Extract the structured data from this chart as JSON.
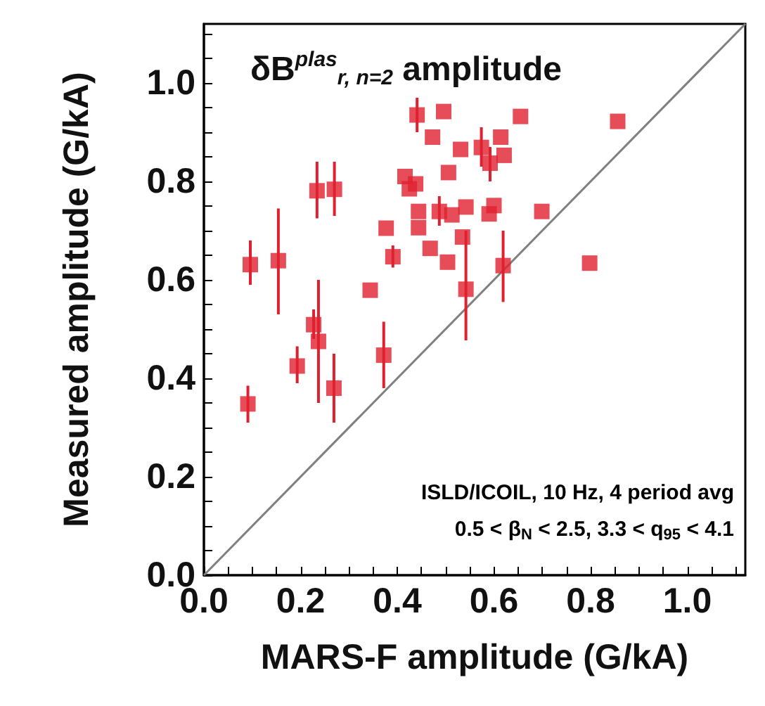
{
  "chart_data": {
    "type": "scatter",
    "title": "δB$^{plas}$$_{r, n=2}$ amplitude",
    "xlabel": "MARS-F amplitude (G/kA)",
    "ylabel": "Measured amplitude (G/kA)",
    "annotations": [
      "ISLD/ICOIL, 10 Hz, 4 period avg",
      "0.5 < β$_{N}$ < 2.5, 3.3 < q$_{95}$ < 4.1"
    ],
    "xlim": [
      0,
      1.12
    ],
    "ylim": [
      0,
      1.12
    ],
    "xticks": [
      {
        "value": 0,
        "label": "0.0"
      },
      {
        "value": 0.05,
        "label": null
      },
      0.2,
      {
        "value": 0.1,
        "label": null
      },
      {
        "value": 0.15,
        "label": null
      },
      {
        "value": 0.25,
        "label": null
      },
      {
        "value": 0.3,
        "label": null
      },
      {
        "value": 0.35,
        "label": null
      },
      0.4,
      {
        "value": 0.45,
        "label": null
      },
      {
        "value": 0.5,
        "label": null
      },
      {
        "value": 0.55,
        "label": null
      },
      0.6,
      {
        "value": 0.65,
        "label": null
      },
      {
        "value": 0.7,
        "label": null
      },
      {
        "value": 0.75,
        "label": null
      },
      0.8,
      {
        "value": 0.85,
        "label": null
      },
      {
        "value": 0.9,
        "label": null
      },
      {
        "value": 0.95,
        "label": null
      },
      {
        "value": 1,
        "label": "1.0"
      },
      {
        "value": 1.05,
        "label": null
      },
      {
        "value": 1.1,
        "label": null
      }
    ],
    "yticks": [
      {
        "value": 0,
        "label": "0.0"
      },
      {
        "value": 0.05,
        "label": null
      },
      {
        "value": 0.1,
        "label": null
      },
      {
        "value": 0.15,
        "label": null
      },
      0.2,
      {
        "value": 0.25,
        "label": null
      },
      {
        "value": 0.3,
        "label": null
      },
      {
        "value": 0.35,
        "label": null
      },
      0.4,
      {
        "value": 0.45,
        "label": null
      },
      {
        "value": 0.5,
        "label": null
      },
      {
        "value": 0.55,
        "label": null
      },
      0.6,
      {
        "value": 0.65,
        "label": null
      },
      {
        "value": 0.7,
        "label": null
      },
      {
        "value": 0.75,
        "label": null
      },
      0.8,
      {
        "value": 0.85,
        "label": null
      },
      {
        "value": 0.9,
        "label": null
      },
      {
        "value": 0.95,
        "label": null
      },
      {
        "value": 1,
        "label": "1.0"
      },
      {
        "value": 1.05,
        "label": null
      },
      {
        "value": 1.1,
        "label": null
      }
    ],
    "grid": false,
    "series": [
      {
        "type": "line",
        "color": "#808080",
        "marker": "none",
        "line_style": "solid",
        "x": [
          0,
          1.12
        ],
        "values": [
          0,
          1.12
        ]
      },
      {
        "color": "#e0202f",
        "marker": "square",
        "x": [
          0.091,
          0.096,
          0.154,
          0.193,
          0.227,
          0.237,
          0.234,
          0.27,
          0.269,
          0.344,
          0.372,
          0.377,
          0.391,
          0.416,
          0.425,
          0.438,
          0.441,
          0.444,
          0.444,
          0.468,
          0.473,
          0.496,
          0.487,
          0.504,
          0.506,
          0.513,
          0.542,
          0.531,
          0.535,
          0.542,
          0.574,
          0.592,
          0.59,
          0.6,
          0.614,
          0.621,
          0.619,
          0.655,
          0.699,
          0.798,
          0.856
        ],
        "values": [
          0.348,
          0.631,
          0.639,
          0.425,
          0.509,
          0.475,
          0.781,
          0.784,
          0.38,
          0.579,
          0.447,
          0.705,
          0.647,
          0.81,
          0.785,
          0.795,
          0.935,
          0.739,
          0.706,
          0.664,
          0.89,
          0.942,
          0.739,
          0.636,
          0.818,
          0.732,
          0.748,
          0.865,
          0.687,
          0.581,
          0.869,
          0.837,
          0.734,
          0.751,
          0.89,
          0.853,
          0.629,
          0.932,
          0.739,
          0.634,
          0.922
        ],
        "errors": [
          [
            0.31,
            0.385
          ],
          [
            0.59,
            0.68
          ],
          [
            0.53,
            0.745
          ],
          [
            0.39,
            0.465
          ],
          [
            0.48,
            0.54
          ],
          [
            0.35,
            0.6
          ],
          [
            0.725,
            0.84
          ],
          [
            0.73,
            0.84
          ],
          [
            0.31,
            0.45
          ],
          null,
          [
            0.38,
            0.515
          ],
          null,
          [
            0.625,
            0.67
          ],
          null,
          null,
          null,
          [
            0.9,
            0.97
          ],
          null,
          null,
          null,
          null,
          null,
          [
            0.71,
            0.77
          ],
          null,
          null,
          null,
          null,
          null,
          null,
          [
            0.477,
            0.7
          ],
          [
            0.83,
            0.91
          ],
          [
            0.8,
            0.87
          ],
          null,
          null,
          null,
          null,
          [
            0.555,
            0.7
          ],
          null,
          null,
          null,
          null
        ]
      }
    ]
  }
}
